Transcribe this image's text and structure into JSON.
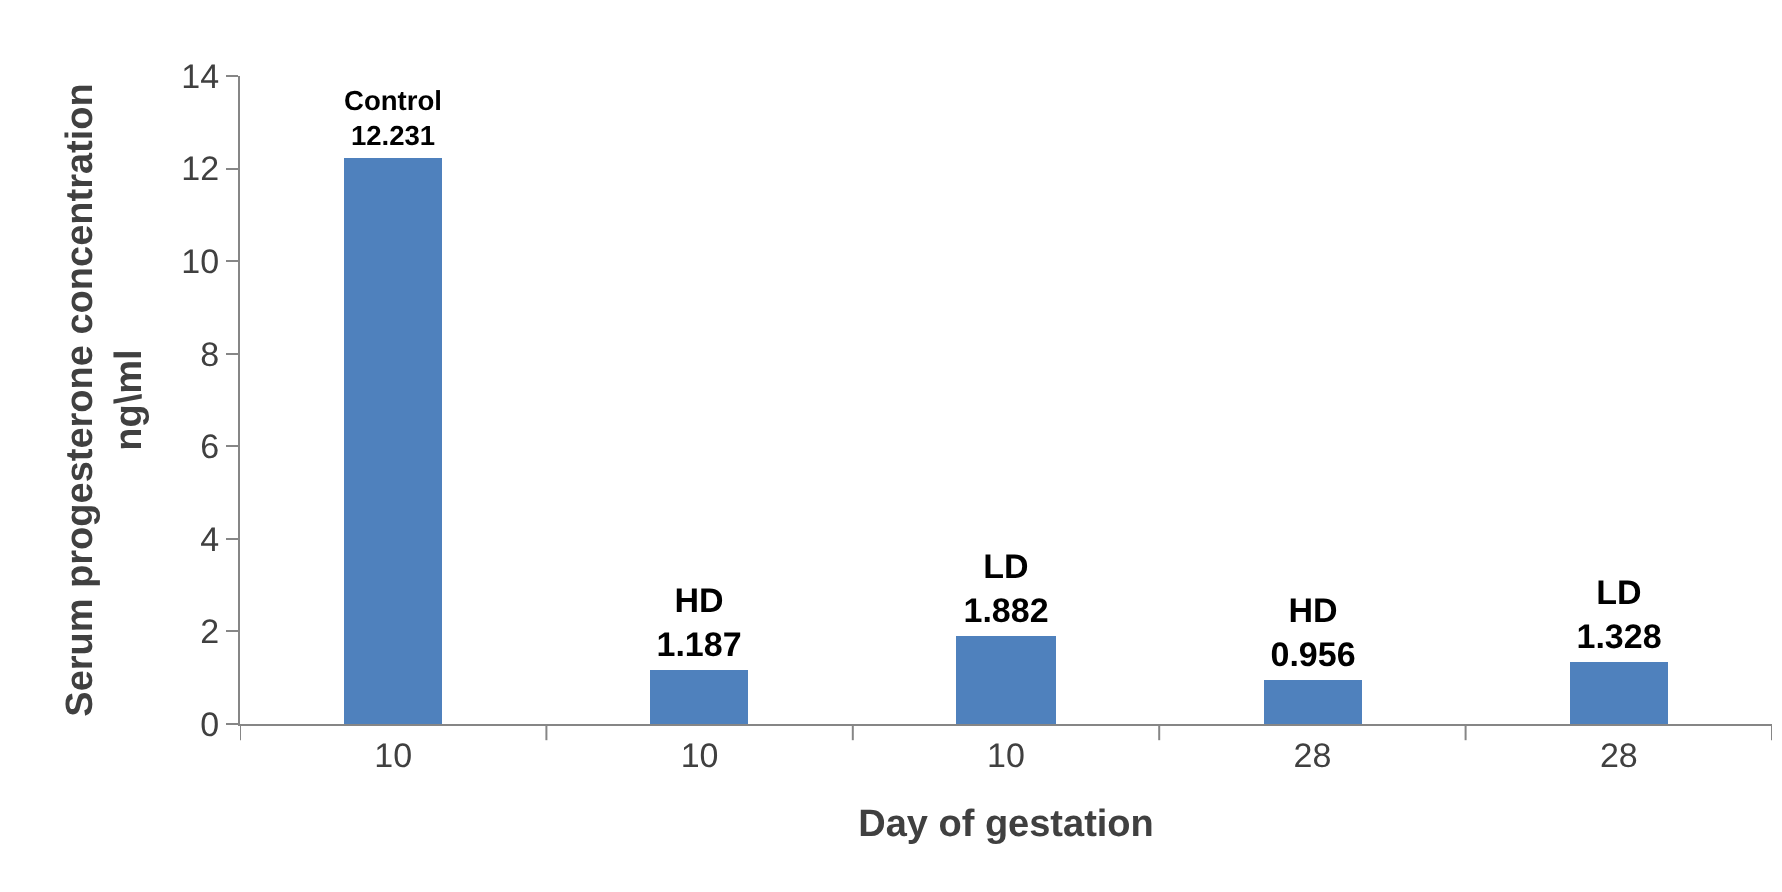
{
  "chart_data": {
    "type": "bar",
    "categories": [
      "10",
      "10",
      "10",
      "28",
      "28"
    ],
    "values": [
      12.231,
      1.187,
      1.882,
      0.956,
      1.328
    ],
    "value_labels": [
      "Control\n12.231",
      "HD\n1.187",
      "LD\n1.882",
      "HD\n0.956",
      "LD\n1.328"
    ],
    "color": "#4f81bd",
    "xlabel": "Day of gestation",
    "ylabel": "Serum progesterone concentration\nng\\ml",
    "ylim": [
      0,
      14
    ],
    "yticks": [
      0,
      2,
      4,
      6,
      8,
      10,
      12,
      14
    ],
    "grid": false,
    "legend": false
  }
}
